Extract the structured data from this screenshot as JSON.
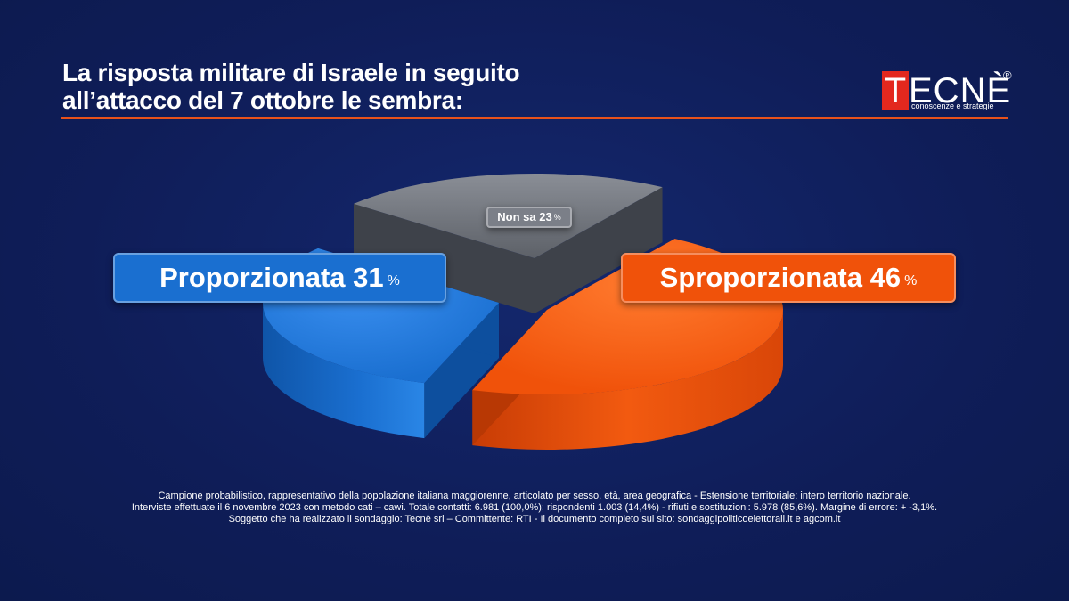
{
  "title": {
    "line1": "La risposta militare di Israele in seguito",
    "line2": "all’attacco del 7 ottobre le sembra:"
  },
  "logo": {
    "initial": "T",
    "rest": "ECNÈ",
    "registered": "®",
    "tagline": "conoscenze e strategie"
  },
  "chart_data": {
    "type": "pie",
    "title": "La risposta militare di Israele in seguito all’attacco del 7 ottobre le sembra:",
    "categories": [
      "Proporzionata",
      "Sproporzionata",
      "Non sa"
    ],
    "values": [
      31,
      46,
      23
    ],
    "unit": "%",
    "colors": [
      "#1a6fd0",
      "#f0520a",
      "#6f737b"
    ],
    "labels": [
      {
        "name": "Proporzionata",
        "value": "31",
        "unit": "%"
      },
      {
        "name": "Sproporzionata",
        "value": "46",
        "unit": "%"
      },
      {
        "name": "Non sa",
        "value": "23",
        "unit": "%"
      }
    ]
  },
  "notes": {
    "line1": "Campione probabilistico, rappresentativo della popolazione italiana maggiorenne, articolato per sesso, età, area geografica - Estensione territoriale: intero territorio nazionale.",
    "line2": "Interviste effettuate il 6 novembre 2023 con metodo cati – cawi. Totale contatti: 6.981 (100,0%); rispondenti 1.003 (14,4%) - rifiuti e sostituzioni: 5.978 (85,6%). Margine di errore: + -3,1%.",
    "line3": "Soggetto che ha realizzato il sondaggio: Tecnè srl – Committente: RTI - Il documento completo sul sito: sondaggipoliticoelettorali.it e agcom.it"
  }
}
